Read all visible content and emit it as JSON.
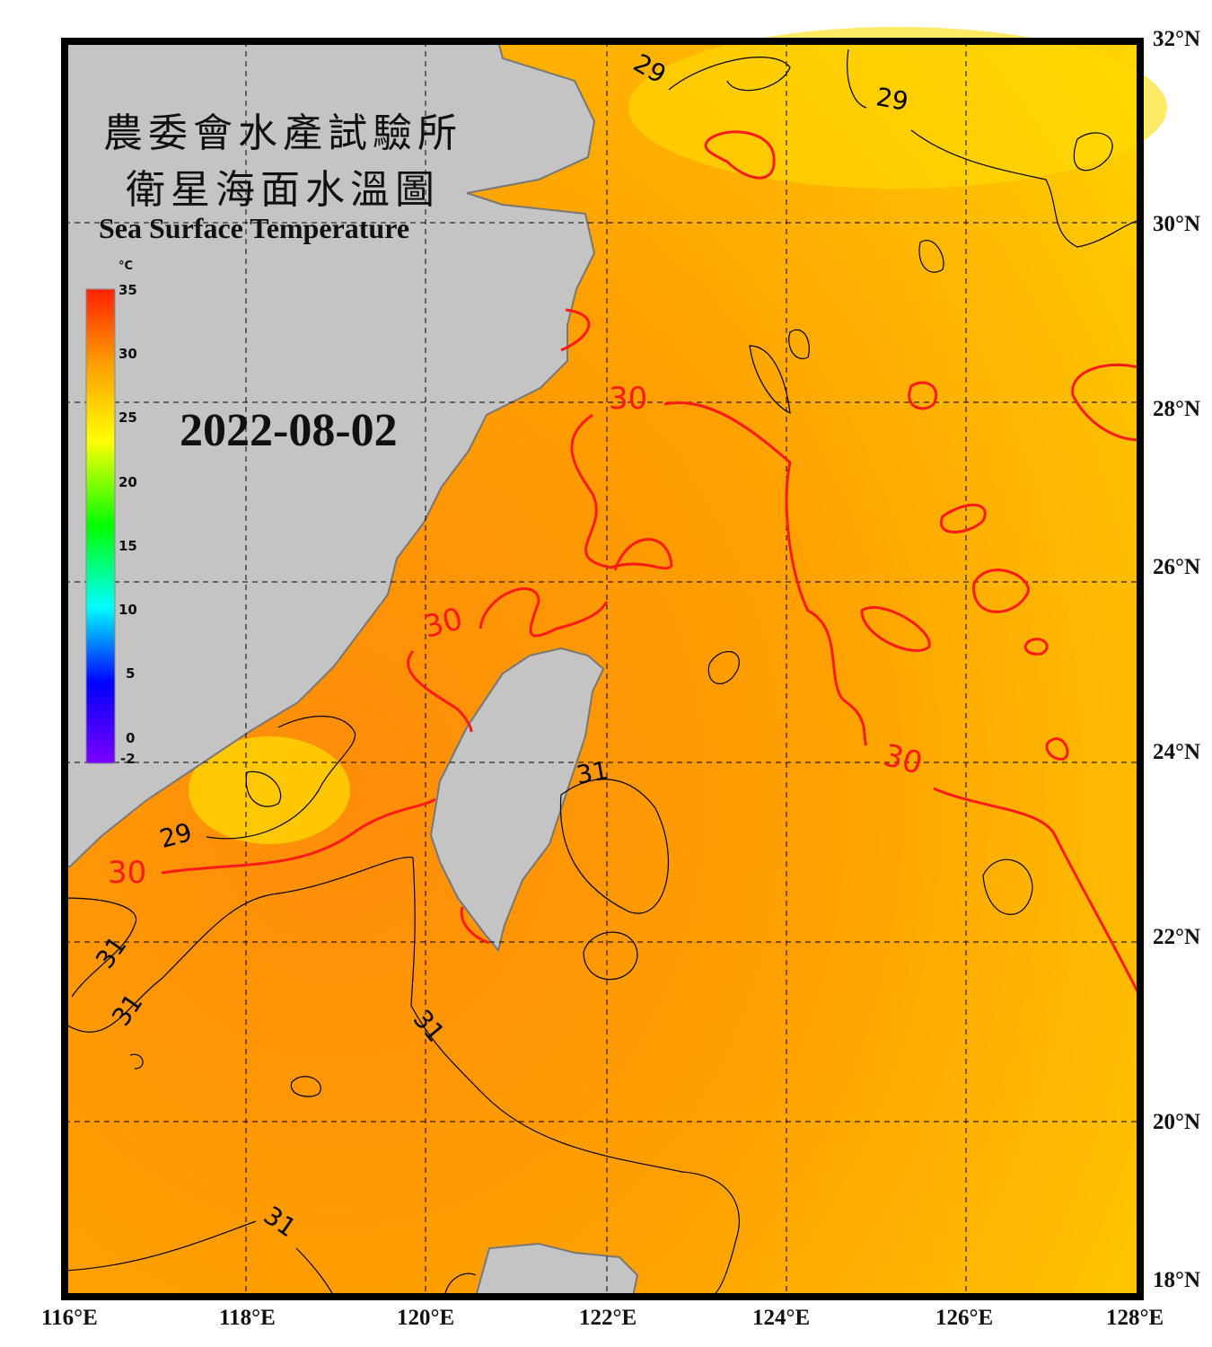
{
  "title": {
    "line1": "農委會水產試驗所",
    "line2": "衛星海面水溫圖",
    "english": "Sea Surface Temperature"
  },
  "date": "2022-08-02",
  "colorbar": {
    "unit": "°C",
    "ticks": [
      "35",
      "30",
      "25",
      "20",
      "15",
      "10",
      "5",
      "0",
      "-2"
    ],
    "range": [
      -2,
      35
    ],
    "colors": [
      "#7b00ff",
      "#0000ff",
      "#00ffff",
      "#00ff00",
      "#ffff00",
      "#ff9900",
      "#ff2000"
    ]
  },
  "axes": {
    "lon_labels": [
      "116°E",
      "118°E",
      "120°E",
      "122°E",
      "124°E",
      "126°E",
      "128°E"
    ],
    "lat_labels": [
      "32°N",
      "30°N",
      "28°N",
      "26°N",
      "24°N",
      "22°N",
      "20°N",
      "18°N"
    ]
  },
  "contour_labels": {
    "black": [
      "29",
      "29",
      "29",
      "31",
      "31",
      "31",
      "31",
      "31"
    ],
    "red": [
      "30",
      "30",
      "30",
      "30"
    ]
  },
  "colors": {
    "land": "#c4c4c4",
    "sea_warm": "#ff9a00",
    "sea_cool": "#ffd400",
    "contour_30": "#ff1a1a",
    "contour_other": "#000000"
  }
}
